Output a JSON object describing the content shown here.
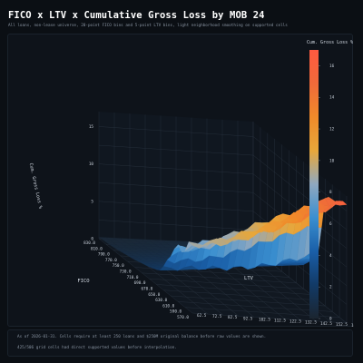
{
  "title": "FICO x LTV x Cumulative Gross Loss by MOB 24",
  "subtitle": "All loans, non-lease universe, 20-point FICO bins and 5-point LTV bins, light neighborhood smoothing on supported cells",
  "footnotes": [
    "As of 2026-01-31. Cells require at least 250 loans and $250M original balance before raw values are shown.",
    "425/506 grid cells had direct supported values before interpolation."
  ],
  "chart_data": {
    "type": "surface",
    "title": "FICO x LTV x Cumulative Gross Loss by MOB 24",
    "xlabel": "FICO",
    "ylabel": "LTV",
    "zlabel": "Cum. Gross Loss %",
    "x_ticks": [
      "830.0",
      "810.0",
      "790.0",
      "770.0",
      "750.0",
      "730.0",
      "710.0",
      "690.0",
      "670.0",
      "650.0",
      "630.0",
      "610.0",
      "590.0",
      "570.0"
    ],
    "y_ticks": [
      "62.5",
      "72.5",
      "82.5",
      "92.5",
      "102.5",
      "112.5",
      "122.5",
      "132.5",
      "142.5",
      "152.5",
      "162.5"
    ],
    "zlim": [
      0,
      17
    ],
    "z_ticks": [
      "0",
      "5",
      "10",
      "15"
    ],
    "colorbar": {
      "label": "Cum. Gross Loss %",
      "range": [
        0,
        17
      ],
      "ticks": [
        "0",
        "2",
        "4",
        "6",
        "8",
        "10",
        "12",
        "14",
        "16"
      ]
    },
    "surface_profile": {
      "description_units": "cumulative gross loss percent",
      "fico": [
        830,
        810,
        790,
        770,
        750,
        730,
        710,
        690,
        670,
        650,
        630,
        610,
        590,
        570
      ],
      "loss_low_ltv": [
        0.2,
        0.3,
        0.4,
        0.6,
        0.8,
        1.0,
        1.3,
        1.6,
        2.0,
        2.6,
        6.0,
        7.0,
        8.0,
        9.0
      ],
      "loss_high_ltv": [
        0.6,
        0.8,
        1.0,
        1.2,
        1.6,
        2.0,
        2.5,
        3.2,
        4.5,
        6.0,
        14.5,
        15.0,
        15.5,
        16.0
      ]
    }
  },
  "colors": {
    "background": "#0b0f14",
    "panel": "#0e131a",
    "grid": "#2a3440",
    "text": "#d6dde6",
    "muted": "#8a95a3",
    "colormap": [
      "#1b2530",
      "#123a66",
      "#1a5fa8",
      "#3a8fd0",
      "#8fa8c0",
      "#e8a73a",
      "#f08a2a",
      "#f06a3a",
      "#ff5a40"
    ]
  }
}
